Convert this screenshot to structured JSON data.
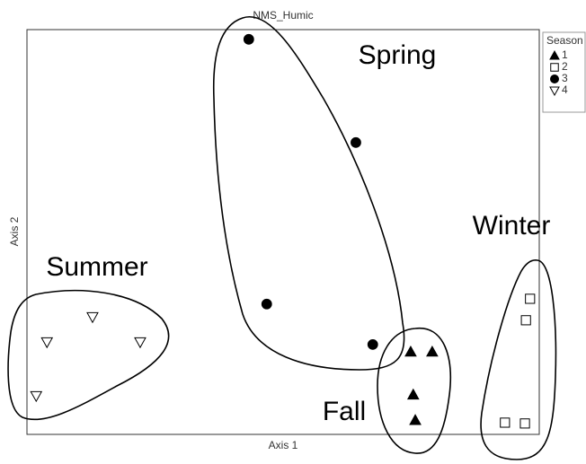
{
  "chart_data": {
    "type": "scatter",
    "title": "NMS_Humic",
    "x_label": "Axis 1",
    "y_label": "Axis 2",
    "xlim": [
      0,
      100
    ],
    "ylim": [
      0,
      100
    ],
    "legend_title": "Season",
    "legend": "upper right",
    "annotations": [
      "Spring",
      "Winter",
      "Summer",
      "Fall"
    ],
    "series": [
      {
        "name": "1",
        "color": "#000000",
        "marker": "triangle-up",
        "filled": true,
        "x": [
          74.9,
          79.1,
          75.4,
          75.8
        ],
        "values": [
          20.4,
          20.4,
          9.8,
          3.5
        ]
      },
      {
        "name": "2",
        "color": "#000000",
        "marker": "square",
        "filled": false,
        "x": [
          98.2,
          97.4,
          93.3,
          97.2
        ],
        "values": [
          33.5,
          28.2,
          2.9,
          2.7
        ]
      },
      {
        "name": "3",
        "color": "#000000",
        "marker": "circle",
        "filled": true,
        "x": [
          43.3,
          64.2,
          46.8,
          67.5
        ],
        "values": [
          97.6,
          72.1,
          32.2,
          22.2
        ]
      },
      {
        "name": "4",
        "color": "#000000",
        "marker": "triangle-down",
        "filled": false,
        "x": [
          12.8,
          3.9,
          22.1,
          1.8
        ],
        "values": [
          29.0,
          22.8,
          22.8,
          9.5
        ]
      }
    ]
  }
}
